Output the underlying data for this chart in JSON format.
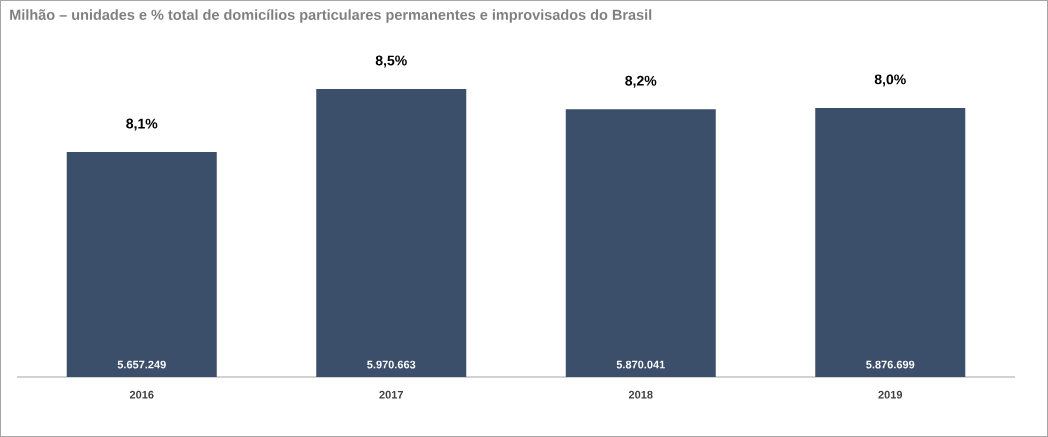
{
  "chart_data": {
    "type": "bar",
    "title": "Milhão – unidades e % total de domicílios particulares permanentes e improvisados do Brasil",
    "categories": [
      "2016",
      "2017",
      "2018",
      "2019"
    ],
    "values": [
      5657249,
      5970663,
      5870041,
      5876699
    ],
    "value_labels": [
      "5.657.249",
      "5.970.663",
      "5.870.041",
      "5.876.699"
    ],
    "color": "#3b4f6b",
    "ylim": [
      4540000,
      5970663
    ],
    "tick_labels": "x",
    "annotations": [
      {
        "text": "8,1%",
        "x": "2016",
        "y": 5657249
      },
      {
        "text": "8,5%",
        "x": "2017",
        "y": 5970663
      },
      {
        "text": "8,2%",
        "x": "2018",
        "y": 5870041
      },
      {
        "text": "8,0%",
        "x": "2019",
        "y": 5876699
      }
    ]
  }
}
